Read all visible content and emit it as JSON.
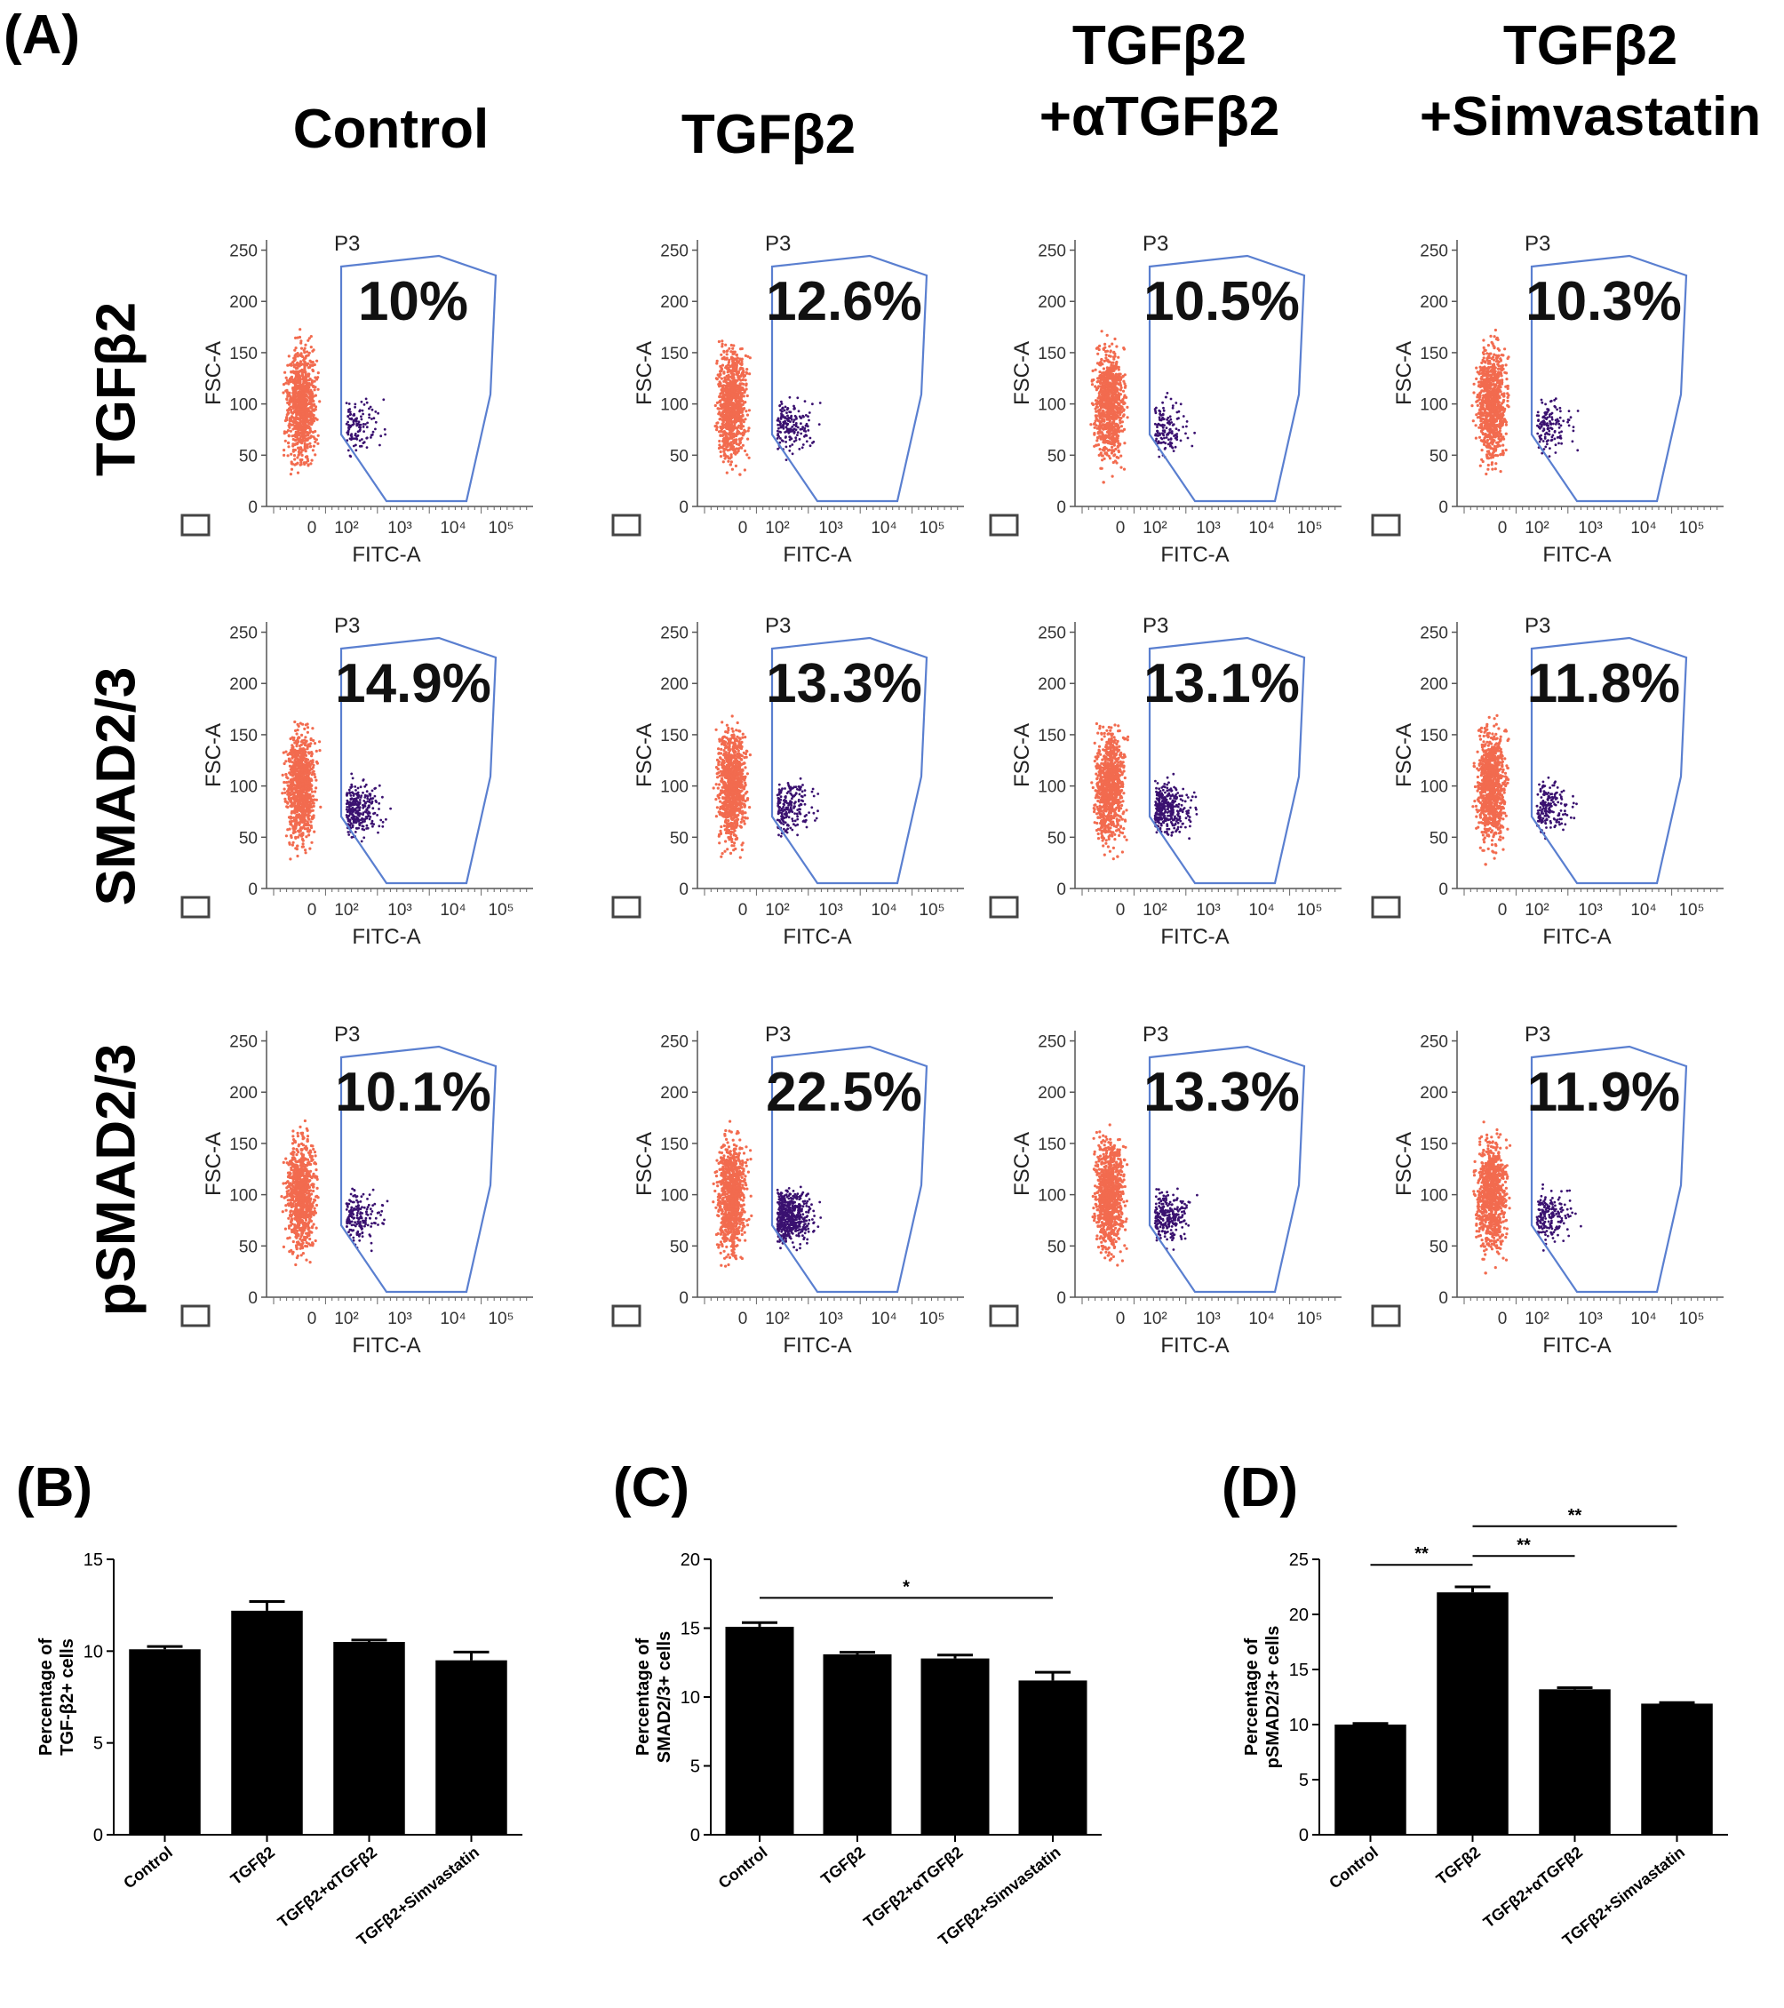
{
  "panel_a": {
    "label": "(A)",
    "columns": [
      {
        "lines": [
          "Control"
        ]
      },
      {
        "lines": [
          "TGFβ2"
        ]
      },
      {
        "lines": [
          "TGFβ2",
          "+αTGFβ2"
        ]
      },
      {
        "lines": [
          "TGFβ2",
          "+Simvastatin"
        ]
      }
    ],
    "rows": [
      "TGFβ2",
      "SMAD2/3",
      "pSMAD2/3"
    ],
    "gate_label": "P3",
    "x_axis_label": "FITC-A",
    "y_axis_label": "FSC-A",
    "y_ticks": [
      "0",
      "50",
      "100",
      "150",
      "200",
      "250"
    ],
    "percentages": [
      [
        "10%",
        "12.6%",
        "10.5%",
        "10.3%"
      ],
      [
        "14.9%",
        "13.3%",
        "13.1%",
        "11.8%"
      ],
      [
        "10.1%",
        "22.5%",
        "13.3%",
        "11.9%"
      ]
    ],
    "colors": {
      "negative": "#f26b4f",
      "positive": "#3a1170",
      "gate": "#5a7fd0"
    }
  },
  "chart_data": [
    {
      "panel": "(B)",
      "type": "bar",
      "categories": [
        "Control",
        "TGFβ2",
        "TGFβ2+αTGFβ2",
        "TGFβ2+Simvastatin"
      ],
      "values": [
        10.1,
        12.2,
        10.5,
        9.5
      ],
      "errors": [
        0.15,
        0.5,
        0.1,
        0.45
      ],
      "ylabel_lines": [
        "Percentage of",
        "TGF-β2+ cells"
      ],
      "ylim": [
        0,
        15
      ],
      "yticks": [
        0,
        5,
        10,
        15
      ],
      "significance": []
    },
    {
      "panel": "(C)",
      "type": "bar",
      "categories": [
        "Control",
        "TGFβ2",
        "TGFβ2+αTGFβ2",
        "TGFβ2+Simvastatin"
      ],
      "values": [
        15.1,
        13.1,
        12.8,
        11.2
      ],
      "errors": [
        0.3,
        0.15,
        0.25,
        0.6
      ],
      "ylabel_lines": [
        "Percentage of",
        "SMAD2/3+ cells"
      ],
      "ylim": [
        0,
        20
      ],
      "yticks": [
        0,
        5,
        10,
        15,
        20
      ],
      "significance": [
        {
          "from": 0,
          "to": 3,
          "y": 17.2,
          "label": "*"
        }
      ]
    },
    {
      "panel": "(D)",
      "type": "bar",
      "categories": [
        "Control",
        "TGFβ2",
        "TGFβ2+αTGFβ2",
        "TGFβ2+Simvastatin"
      ],
      "values": [
        10.0,
        22.0,
        13.2,
        11.9
      ],
      "errors": [
        0.1,
        0.5,
        0.15,
        0.1
      ],
      "ylabel_lines": [
        "Percentage of",
        "pSMAD2/3+ cells"
      ],
      "ylim": [
        0,
        25
      ],
      "yticks": [
        0,
        5,
        10,
        15,
        20,
        25
      ],
      "significance": [
        {
          "from": 0,
          "to": 1,
          "y": 24.5,
          "label": "**"
        },
        {
          "from": 1,
          "to": 2,
          "y": 25.3,
          "label": "**"
        },
        {
          "from": 1,
          "to": 3,
          "y": 28.0,
          "label": "**"
        }
      ]
    }
  ]
}
